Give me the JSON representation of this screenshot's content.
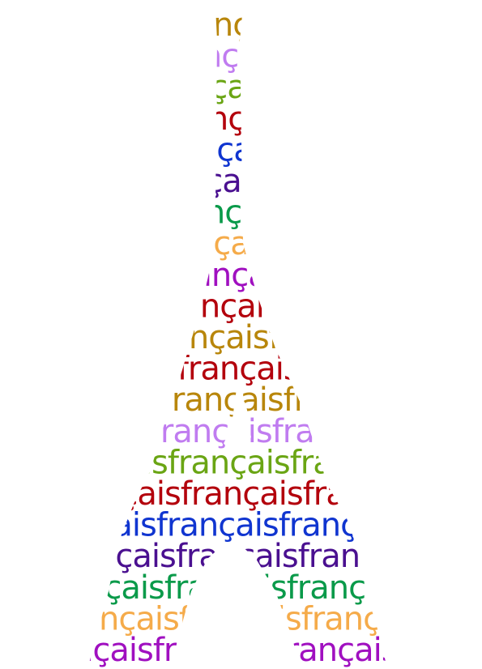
{
  "artwork": {
    "word": "françaisfrançaisfrançaisfrançaisfrançaisfrançaisfrançais",
    "rows": [
      {
        "color": "#b8860b"
      },
      {
        "color": "#c07cf0"
      },
      {
        "color": "#6aa514"
      },
      {
        "color": "#b3000c"
      },
      {
        "color": "#1035d0"
      },
      {
        "color": "#4a1090"
      },
      {
        "color": "#0a9a4a"
      },
      {
        "color": "#f5ab4a"
      },
      {
        "color": "#a010c0"
      },
      {
        "color": "#b3000c"
      },
      {
        "color": "#b8860b"
      },
      {
        "color": "#b3000c"
      },
      {
        "color": "#b8860b"
      },
      {
        "color": "#c07cf0"
      },
      {
        "color": "#6aa514"
      },
      {
        "color": "#b3000c"
      },
      {
        "color": "#1035d0"
      },
      {
        "color": "#4a1090"
      },
      {
        "color": "#0a9a4a"
      },
      {
        "color": "#f5ab4a"
      },
      {
        "color": "#a010c0"
      }
    ]
  }
}
